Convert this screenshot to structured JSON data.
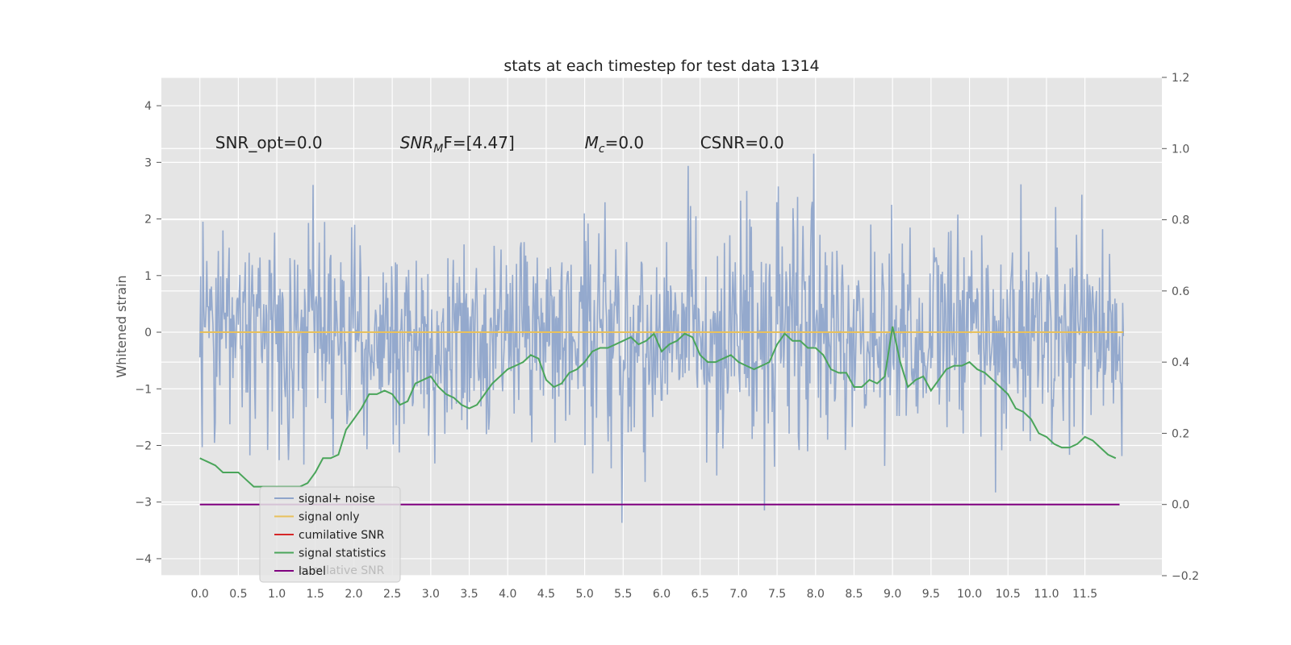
{
  "chart_data": {
    "type": "line",
    "title": "stats at each timestep for test data 1314",
    "ylabel": "Whitened strain",
    "xlim": [
      -0.5,
      12.5
    ],
    "ylim": [
      -4.3,
      4.5
    ],
    "y2lim": [
      -0.2,
      1.2
    ],
    "grid": true,
    "x_ticks": [
      "0.0",
      "0.5",
      "1.0",
      "1.5",
      "2.0",
      "2.5",
      "3.0",
      "3.5",
      "4.0",
      "4.5",
      "5.0",
      "5.5",
      "6.0",
      "6.5",
      "7.0",
      "7.5",
      "8.0",
      "8.5",
      "9.0",
      "9.5",
      "10.0",
      "10.5",
      "11.0",
      "11.5"
    ],
    "y_ticks": [
      "4",
      "3",
      "2",
      "1",
      "0",
      "−1",
      "−2",
      "−3",
      "−4"
    ],
    "y2_ticks": [
      "1.2",
      "1.0",
      "0.8",
      "0.6",
      "0.4",
      "0.2",
      "0.0",
      "−0.2"
    ],
    "annotations": [
      {
        "text": "SNR_opt=0.0",
        "x": 0.2,
        "y": 3.35
      },
      {
        "text": "SNR",
        "sub": "M",
        "tail": "F=[4.47]",
        "x": 2.6,
        "y": 3.35
      },
      {
        "text": "M",
        "sub": "c",
        "tail": "=0.0",
        "x": 5.0,
        "y": 3.35
      },
      {
        "text": "CSNR=0.0",
        "x": 6.5,
        "y": 3.35
      }
    ],
    "legend_placement": "lower left",
    "legend_ghost_text": "cumilative SNR",
    "series": [
      {
        "name": "signal+ noise",
        "color": "#8fa5cb",
        "axis": "left",
        "x_start": 0.0,
        "x_end": 12.0,
        "n_points": 1200,
        "seed": 1314,
        "y_sd": 0.95,
        "note_spike_at": 6.0
      },
      {
        "name": "signal only",
        "color": "#e8c15c",
        "axis": "left",
        "x": [
          0.0,
          12.0
        ],
        "y": [
          0.0,
          0.0
        ]
      },
      {
        "name": "cumilative SNR",
        "color": "#d62728",
        "axis": "right",
        "x": [],
        "y": []
      },
      {
        "name": "signal statistics",
        "color": "#4aa55a",
        "axis": "right",
        "x": [
          0.0,
          0.1,
          0.2,
          0.3,
          0.4,
          0.5,
          0.6,
          0.7,
          0.8,
          0.9,
          1.0,
          1.1,
          1.2,
          1.3,
          1.4,
          1.5,
          1.6,
          1.7,
          1.8,
          1.9,
          2.0,
          2.1,
          2.2,
          2.3,
          2.4,
          2.5,
          2.6,
          2.7,
          2.8,
          2.9,
          3.0,
          3.1,
          3.2,
          3.3,
          3.4,
          3.5,
          3.6,
          3.7,
          3.8,
          3.9,
          4.0,
          4.1,
          4.2,
          4.3,
          4.4,
          4.5,
          4.6,
          4.7,
          4.8,
          4.9,
          5.0,
          5.1,
          5.2,
          5.3,
          5.4,
          5.5,
          5.6,
          5.7,
          5.8,
          5.9,
          6.0,
          6.1,
          6.2,
          6.3,
          6.4,
          6.5,
          6.6,
          6.7,
          6.8,
          6.9,
          7.0,
          7.1,
          7.2,
          7.3,
          7.4,
          7.5,
          7.6,
          7.7,
          7.8,
          7.9,
          8.0,
          8.1,
          8.2,
          8.3,
          8.4,
          8.5,
          8.6,
          8.7,
          8.8,
          8.9,
          9.0,
          9.1,
          9.2,
          9.3,
          9.4,
          9.5,
          9.6,
          9.7,
          9.8,
          9.9,
          10.0,
          10.1,
          10.2,
          10.3,
          10.4,
          10.5,
          10.6,
          10.7,
          10.8,
          10.9,
          11.0,
          11.1,
          11.2,
          11.3,
          11.4,
          11.5,
          11.6,
          11.7,
          11.8,
          11.9
        ],
        "y": [
          0.13,
          0.12,
          0.11,
          0.09,
          0.09,
          0.09,
          0.07,
          0.05,
          0.05,
          0.05,
          0.05,
          0.05,
          0.05,
          0.05,
          0.06,
          0.09,
          0.13,
          0.13,
          0.14,
          0.21,
          0.24,
          0.27,
          0.31,
          0.31,
          0.32,
          0.31,
          0.28,
          0.29,
          0.34,
          0.35,
          0.36,
          0.33,
          0.31,
          0.3,
          0.28,
          0.27,
          0.28,
          0.31,
          0.34,
          0.36,
          0.38,
          0.39,
          0.4,
          0.42,
          0.41,
          0.35,
          0.33,
          0.34,
          0.37,
          0.38,
          0.4,
          0.43,
          0.44,
          0.44,
          0.45,
          0.46,
          0.47,
          0.45,
          0.46,
          0.48,
          0.43,
          0.45,
          0.46,
          0.48,
          0.47,
          0.42,
          0.4,
          0.4,
          0.41,
          0.42,
          0.4,
          0.39,
          0.38,
          0.39,
          0.4,
          0.45,
          0.48,
          0.46,
          0.46,
          0.44,
          0.44,
          0.42,
          0.38,
          0.37,
          0.37,
          0.33,
          0.33,
          0.35,
          0.34,
          0.36,
          0.5,
          0.4,
          0.33,
          0.35,
          0.36,
          0.32,
          0.35,
          0.38,
          0.39,
          0.39,
          0.4,
          0.38,
          0.37,
          0.35,
          0.33,
          0.31,
          0.27,
          0.26,
          0.24,
          0.2,
          0.19,
          0.17,
          0.16,
          0.16,
          0.17,
          0.19,
          0.18,
          0.16,
          0.14,
          0.13
        ],
        "note": "values estimated from gridlines"
      },
      {
        "name": "label",
        "color": "#800080",
        "axis": "right",
        "x": [
          0.0,
          11.95
        ],
        "y": [
          0.0,
          0.0
        ]
      }
    ]
  }
}
